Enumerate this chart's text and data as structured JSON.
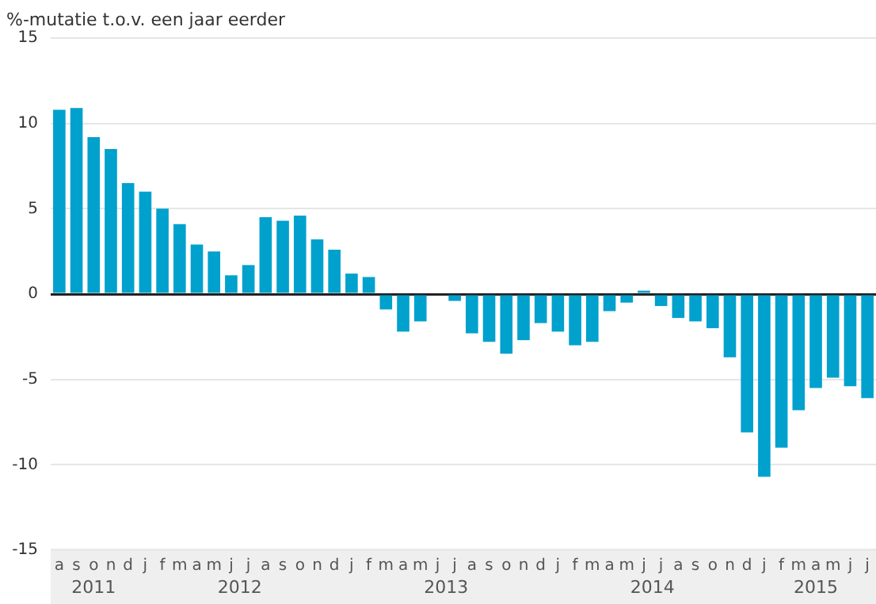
{
  "chart_data": {
    "type": "bar",
    "ylabel": "%-mutatie t.o.v. een jaar eerder",
    "categories": [
      "a",
      "s",
      "o",
      "n",
      "d",
      "j",
      "f",
      "m",
      "a",
      "m",
      "j",
      "j",
      "a",
      "s",
      "o",
      "n",
      "d",
      "j",
      "f",
      "m",
      "a",
      "m",
      "j",
      "j",
      "a",
      "s",
      "o",
      "n",
      "d",
      "j",
      "f",
      "m",
      "a",
      "m",
      "j",
      "j",
      "a",
      "s",
      "o",
      "n",
      "d",
      "j",
      "f",
      "m",
      "a",
      "m",
      "j",
      "j"
    ],
    "values": [
      10.8,
      10.9,
      9.2,
      8.5,
      6.5,
      6.0,
      5.0,
      4.1,
      2.9,
      2.5,
      1.1,
      1.7,
      4.5,
      4.3,
      4.6,
      3.2,
      2.6,
      1.2,
      1.0,
      -0.9,
      -2.2,
      -1.6,
      0,
      -0.4,
      -2.3,
      -2.8,
      -3.5,
      -2.7,
      -1.7,
      -2.2,
      -3.0,
      -2.8,
      -1.0,
      -0.5,
      0.2,
      -0.7,
      -1.4,
      -1.6,
      -2.0,
      -3.7,
      -8.1,
      -10.7,
      -9.0,
      -6.8,
      -5.5,
      -4.9,
      -5.4,
      -6.1
    ],
    "color": "#00a1cd",
    "ylim": [
      -15,
      15
    ],
    "yticks": [
      -15,
      -10,
      -5,
      0,
      5,
      10,
      15
    ],
    "grid": "y",
    "annotations": [
      "2011",
      "2012",
      "2013",
      "2014",
      "2015"
    ]
  }
}
